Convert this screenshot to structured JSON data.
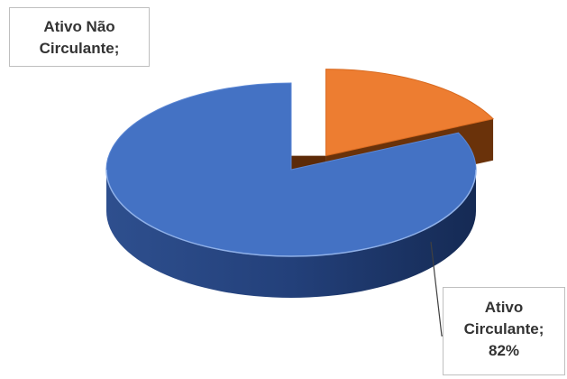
{
  "chart_data": {
    "type": "pie",
    "style": "3d-exploded",
    "title": "",
    "legend": "none",
    "slices": [
      {
        "label_line1": "Ativo Não",
        "label_line2": "Circulante;",
        "label_line3": "",
        "value": 18,
        "color": "#ED7D31",
        "side_color": "#7A3B0D",
        "exploded": true
      },
      {
        "label_line1": "Ativo",
        "label_line2": "Circulante;",
        "label_line3": "82%",
        "value": 82,
        "color": "#4472C4",
        "side_color": "#1F3864",
        "exploded": false
      }
    ]
  }
}
